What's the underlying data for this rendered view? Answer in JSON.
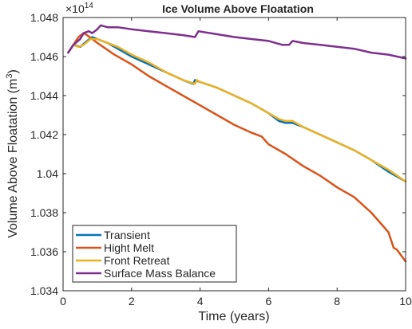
{
  "chart_data": {
    "type": "line",
    "title": "Ice Volume Above Floatation",
    "xlabel": "Time (years)",
    "ylabel": "Volume Above Floatation (m",
    "ylabel_superscript": "3",
    "ylabel_close": ")",
    "exponent_base": "×10",
    "exponent_power": "14",
    "xlim": [
      0,
      10
    ],
    "ylim": [
      1.034,
      1.048
    ],
    "xticks": [
      0,
      2,
      4,
      6,
      8,
      10
    ],
    "xtick_labels": [
      "0",
      "2",
      "4",
      "6",
      "8",
      "10"
    ],
    "yticks": [
      1.034,
      1.036,
      1.038,
      1.04,
      1.042,
      1.044,
      1.046,
      1.048
    ],
    "ytick_labels": [
      "1.034",
      "1.036",
      "1.038",
      "1.04",
      "1.042",
      "1.044",
      "1.046",
      "1.048"
    ],
    "legend_position": "bottom-left",
    "series": [
      {
        "name": "Transient",
        "color": "#0072bd",
        "points": [
          [
            0.15,
            1.0462
          ],
          [
            0.3,
            1.0466
          ],
          [
            0.5,
            1.0465
          ],
          [
            0.7,
            1.0468
          ],
          [
            0.85,
            1.047
          ],
          [
            1.0,
            1.0469
          ],
          [
            1.3,
            1.0467
          ],
          [
            1.6,
            1.0464
          ],
          [
            2.0,
            1.046
          ],
          [
            2.5,
            1.0456
          ],
          [
            3.0,
            1.0452
          ],
          [
            3.5,
            1.0448
          ],
          [
            3.8,
            1.0446
          ],
          [
            3.85,
            1.0448
          ],
          [
            4.0,
            1.0447
          ],
          [
            4.5,
            1.0444
          ],
          [
            5.0,
            1.044
          ],
          [
            5.5,
            1.0436
          ],
          [
            6.0,
            1.0431
          ],
          [
            6.3,
            1.0427
          ],
          [
            6.5,
            1.0426
          ],
          [
            6.7,
            1.0426
          ],
          [
            6.85,
            1.0425
          ],
          [
            7.0,
            1.0424
          ],
          [
            7.5,
            1.042
          ],
          [
            8.0,
            1.0416
          ],
          [
            8.5,
            1.0412
          ],
          [
            9.0,
            1.0407
          ],
          [
            9.5,
            1.0401
          ],
          [
            10.0,
            1.0396
          ]
        ]
      },
      {
        "name": "Hight Melt",
        "color": "#d95319",
        "points": [
          [
            0.15,
            1.0462
          ],
          [
            0.3,
            1.0466
          ],
          [
            0.45,
            1.047
          ],
          [
            0.6,
            1.0472
          ],
          [
            0.7,
            1.0471
          ],
          [
            0.85,
            1.0469
          ],
          [
            1.0,
            1.0467
          ],
          [
            1.5,
            1.0461
          ],
          [
            2.0,
            1.0456
          ],
          [
            2.5,
            1.045
          ],
          [
            3.0,
            1.0445
          ],
          [
            3.5,
            1.044
          ],
          [
            4.0,
            1.0435
          ],
          [
            4.5,
            1.043
          ],
          [
            5.0,
            1.0425
          ],
          [
            5.5,
            1.0421
          ],
          [
            5.8,
            1.0419
          ],
          [
            6.0,
            1.0415
          ],
          [
            6.5,
            1.041
          ],
          [
            7.0,
            1.0404
          ],
          [
            7.5,
            1.0399
          ],
          [
            8.0,
            1.0393
          ],
          [
            8.5,
            1.0388
          ],
          [
            9.0,
            1.038
          ],
          [
            9.5,
            1.037
          ],
          [
            9.65,
            1.0362
          ],
          [
            9.75,
            1.0361
          ],
          [
            10.0,
            1.0355
          ]
        ]
      },
      {
        "name": "Front Retreat",
        "color": "#edb120",
        "points": [
          [
            0.15,
            1.0462
          ],
          [
            0.3,
            1.0466
          ],
          [
            0.45,
            1.0465
          ],
          [
            0.6,
            1.0466
          ],
          [
            0.8,
            1.0469
          ],
          [
            1.0,
            1.0469
          ],
          [
            1.3,
            1.0467
          ],
          [
            1.6,
            1.0465
          ],
          [
            2.0,
            1.0461
          ],
          [
            2.5,
            1.0457
          ],
          [
            3.0,
            1.0452
          ],
          [
            3.5,
            1.0448
          ],
          [
            3.85,
            1.0446
          ],
          [
            3.9,
            1.0448
          ],
          [
            4.0,
            1.0447
          ],
          [
            4.5,
            1.0444
          ],
          [
            5.0,
            1.044
          ],
          [
            5.5,
            1.0436
          ],
          [
            6.0,
            1.0431
          ],
          [
            6.3,
            1.0428
          ],
          [
            6.5,
            1.0427
          ],
          [
            6.7,
            1.0427
          ],
          [
            6.9,
            1.0425
          ],
          [
            7.0,
            1.0424
          ],
          [
            7.5,
            1.042
          ],
          [
            8.0,
            1.0416
          ],
          [
            8.5,
            1.0412
          ],
          [
            9.0,
            1.0407
          ],
          [
            9.5,
            1.0402
          ],
          [
            10.0,
            1.0396
          ]
        ]
      },
      {
        "name": "Surface Mass Balance",
        "color": "#7e2f8e",
        "points": [
          [
            0.15,
            1.0462
          ],
          [
            0.3,
            1.0466
          ],
          [
            0.5,
            1.0469
          ],
          [
            0.6,
            1.0472
          ],
          [
            0.75,
            1.0473
          ],
          [
            0.85,
            1.0472
          ],
          [
            1.0,
            1.0474
          ],
          [
            1.1,
            1.0476
          ],
          [
            1.3,
            1.0475
          ],
          [
            1.6,
            1.0475
          ],
          [
            2.0,
            1.0474
          ],
          [
            2.5,
            1.0473
          ],
          [
            3.0,
            1.0472
          ],
          [
            3.5,
            1.0471
          ],
          [
            3.85,
            1.047
          ],
          [
            3.95,
            1.0473
          ],
          [
            4.3,
            1.0472
          ],
          [
            5.0,
            1.047
          ],
          [
            5.5,
            1.0469
          ],
          [
            6.0,
            1.0468
          ],
          [
            6.4,
            1.0466
          ],
          [
            6.6,
            1.0466
          ],
          [
            6.7,
            1.0468
          ],
          [
            7.0,
            1.0467
          ],
          [
            7.5,
            1.0466
          ],
          [
            8.0,
            1.0465
          ],
          [
            8.5,
            1.0464
          ],
          [
            9.0,
            1.0462
          ],
          [
            9.5,
            1.0461
          ],
          [
            10.0,
            1.0459
          ]
        ]
      }
    ]
  }
}
